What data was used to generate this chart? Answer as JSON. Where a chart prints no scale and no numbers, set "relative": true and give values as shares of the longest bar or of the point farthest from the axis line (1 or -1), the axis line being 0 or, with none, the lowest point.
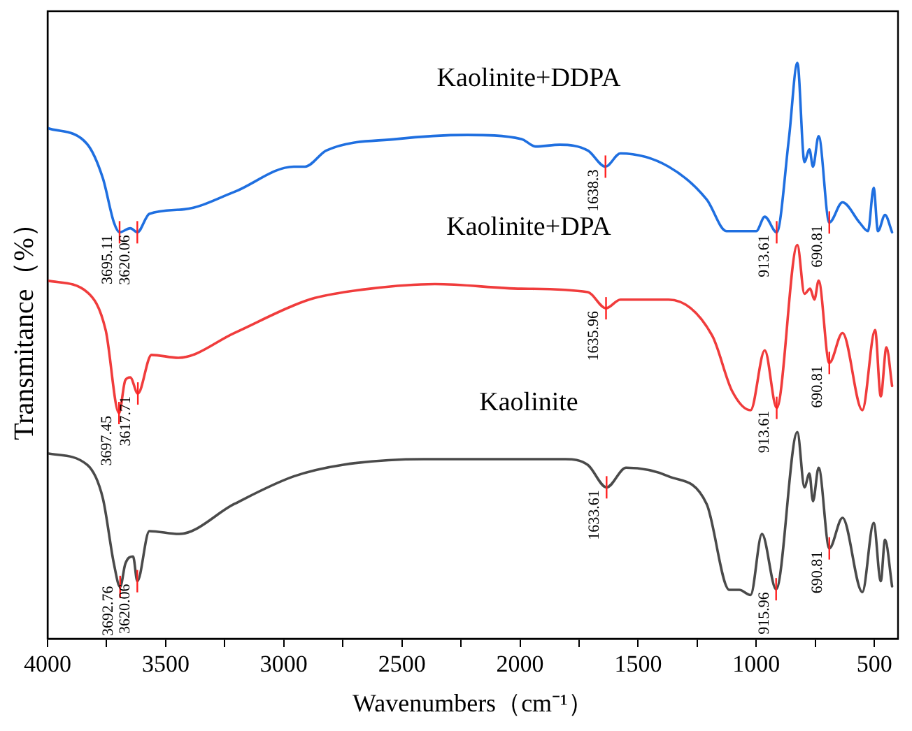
{
  "chart_data": {
    "type": "line",
    "xlabel": "Wavenumbers（cm⁻¹）",
    "ylabel": "Transmitance（%）",
    "relative": true,
    "legend": false,
    "grid": false,
    "marker": "none",
    "line_style": "solid",
    "tick_labels": "x",
    "xlim": [
      4000,
      400
    ],
    "xticks": [
      4000,
      {
        "value": 3750,
        "label": null
      },
      3500,
      {
        "value": 3250,
        "label": null
      },
      3000,
      {
        "value": 2750,
        "label": null
      },
      2500,
      {
        "value": 2250,
        "label": null
      },
      2000,
      {
        "value": 1750,
        "label": null
      },
      1500,
      {
        "value": 1250,
        "label": null
      },
      1000,
      {
        "value": 750,
        "label": null
      },
      500
    ],
    "series": [
      {
        "name": "Kaolinite+DDPA",
        "color": "#1f6fe0",
        "x": [
          4000,
          3834,
          3766,
          3719,
          3695.11,
          3650,
          3620.06,
          3569,
          3419,
          3210,
          2958,
          2910,
          2820,
          2521,
          2222,
          1994,
          1934,
          1832,
          1713,
          1638.3,
          1575,
          1371,
          1210,
          1126,
          1000,
          964,
          913.61,
          862,
          826,
          796,
          775,
          760,
          736,
          690.81,
          635,
          563,
          527,
          503,
          485,
          455,
          425
        ],
        "values": [
          0.887,
          0.86,
          0.8,
          0.723,
          0.706,
          0.713,
          0.706,
          0.738,
          0.746,
          0.776,
          0.82,
          0.82,
          0.848,
          0.868,
          0.875,
          0.868,
          0.855,
          0.858,
          0.848,
          0.82,
          0.843,
          0.82,
          0.763,
          0.708,
          0.708,
          0.733,
          0.706,
          0.868,
          1.0,
          0.828,
          0.85,
          0.82,
          0.873,
          0.723,
          0.758,
          0.723,
          0.708,
          0.783,
          0.708,
          0.736,
          0.706
        ]
      },
      {
        "name": "Kaolinite+DPA",
        "color": "#f03c3c",
        "x": [
          4000,
          3832,
          3754,
          3697.45,
          3671,
          3650,
          3617.71,
          3560,
          3446,
          3210,
          2958,
          2868,
          2635,
          2360,
          1994,
          1713,
          1635.96,
          1575,
          1371,
          1186,
          1102,
          1024,
          964,
          913.61,
          826,
          796,
          772,
          754,
          736,
          690.81,
          635,
          551,
          497,
          473,
          449,
          425
        ],
        "values": [
          0.622,
          0.602,
          0.536,
          0.392,
          0.449,
          0.454,
          0.426,
          0.493,
          0.488,
          0.531,
          0.579,
          0.592,
          0.608,
          0.616,
          0.608,
          0.602,
          0.574,
          0.589,
          0.589,
          0.526,
          0.43,
          0.397,
          0.501,
          0.401,
          0.684,
          0.599,
          0.608,
          0.589,
          0.622,
          0.479,
          0.531,
          0.397,
          0.536,
          0.421,
          0.506,
          0.439
        ]
      },
      {
        "name": "Kaolinite",
        "color": "#4a4a4a",
        "x": [
          4000,
          3832,
          3766,
          3719,
          3692.76,
          3671,
          3638,
          3620.06,
          3569,
          3443,
          3210,
          2958,
          2752,
          2408,
          1994,
          1808,
          1713,
          1633.61,
          1551,
          1371,
          1210,
          1114,
          1072,
          1024,
          976,
          915.96,
          826,
          796,
          775,
          760,
          736,
          690.81,
          635,
          551,
          503,
          473,
          455,
          425
        ],
        "values": [
          0.322,
          0.302,
          0.244,
          0.13,
          0.09,
          0.13,
          0.143,
          0.1,
          0.187,
          0.182,
          0.234,
          0.282,
          0.302,
          0.312,
          0.312,
          0.312,
          0.302,
          0.263,
          0.297,
          0.282,
          0.234,
          0.085,
          0.085,
          0.076,
          0.182,
          0.086,
          0.359,
          0.263,
          0.287,
          0.239,
          0.297,
          0.157,
          0.21,
          0.081,
          0.201,
          0.1,
          0.172,
          0.091
        ]
      }
    ],
    "annotations": [
      {
        "text": "3695.11",
        "x": 3695.11,
        "y": 0.706
      },
      {
        "text": "3620.06",
        "x": 3620.06,
        "y": 0.706
      },
      {
        "text": "1638.3",
        "x": 1638.3,
        "y": 0.82
      },
      {
        "text": "913.61",
        "x": 913.61,
        "y": 0.706
      },
      {
        "text": "690.81",
        "x": 690.81,
        "y": 0.723
      },
      {
        "text": "3697.45",
        "x": 3697.45,
        "y": 0.392
      },
      {
        "text": "3617.71",
        "x": 3617.71,
        "y": 0.426
      },
      {
        "text": "1635.96",
        "x": 1635.96,
        "y": 0.574
      },
      {
        "text": "913.61",
        "x": 913.61,
        "y": 0.401
      },
      {
        "text": "690.81",
        "x": 690.81,
        "y": 0.479
      },
      {
        "text": "3692.76",
        "x": 3692.76,
        "y": 0.09
      },
      {
        "text": "3620.06",
        "x": 3620.06,
        "y": 0.1
      },
      {
        "text": "1633.61",
        "x": 1633.61,
        "y": 0.263
      },
      {
        "text": "915.96",
        "x": 915.96,
        "y": 0.086
      },
      {
        "text": "690.81",
        "x": 690.81,
        "y": 0.157
      }
    ]
  }
}
